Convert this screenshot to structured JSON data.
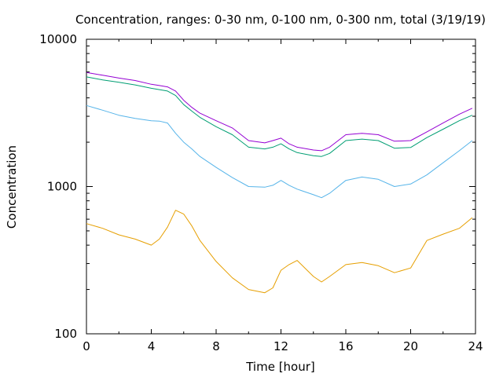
{
  "chart_data": {
    "type": "line",
    "title": "Concentration, ranges: 0-30 nm, 0-100 nm, 0-300 nm, total (3/19/19)",
    "xlabel": "Time [hour]",
    "ylabel": "Concentration",
    "xlim": [
      0,
      24
    ],
    "ylim": [
      100,
      10000
    ],
    "yscale": "log",
    "grid": false,
    "legend": "none",
    "xticks": [
      "0",
      "4",
      "8",
      "12",
      "16",
      "20",
      "24"
    ],
    "yticks": [
      "100",
      "1000",
      "10000"
    ],
    "x": [
      0,
      1,
      2,
      3,
      4,
      4.5,
      5,
      5.5,
      6,
      6.5,
      7,
      8,
      9,
      10,
      11,
      11.5,
      12,
      12.5,
      13,
      14,
      14.5,
      15,
      16,
      17,
      18,
      19,
      20,
      21,
      22,
      23,
      23.8
    ],
    "series": [
      {
        "color": "#e69f00",
        "values": [
          560,
          520,
          470,
          440,
          400,
          440,
          530,
          690,
          650,
          540,
          430,
          310,
          240,
          200,
          190,
          205,
          270,
          295,
          315,
          245,
          225,
          245,
          295,
          305,
          290,
          260,
          280,
          430,
          475,
          520,
          615
        ]
      },
      {
        "color": "#56b4e9",
        "values": [
          3550,
          3300,
          3050,
          2900,
          2800,
          2780,
          2700,
          2300,
          2000,
          1800,
          1600,
          1350,
          1150,
          1000,
          990,
          1020,
          1100,
          1020,
          960,
          880,
          840,
          900,
          1100,
          1160,
          1120,
          1000,
          1040,
          1200,
          1450,
          1750,
          2050
        ]
      },
      {
        "color": "#009e73",
        "values": [
          5550,
          5300,
          5100,
          4900,
          4650,
          4550,
          4450,
          4150,
          3600,
          3250,
          2950,
          2550,
          2250,
          1850,
          1800,
          1850,
          1950,
          1800,
          1700,
          1620,
          1600,
          1680,
          2050,
          2100,
          2050,
          1820,
          1840,
          2150,
          2450,
          2800,
          3050
        ]
      },
      {
        "color": "#9400d3",
        "values": [
          5950,
          5700,
          5450,
          5250,
          4950,
          4850,
          4750,
          4450,
          3850,
          3450,
          3150,
          2800,
          2500,
          2050,
          1980,
          2050,
          2130,
          1950,
          1850,
          1770,
          1750,
          1850,
          2250,
          2300,
          2250,
          2030,
          2050,
          2350,
          2700,
          3100,
          3400
        ]
      }
    ]
  }
}
